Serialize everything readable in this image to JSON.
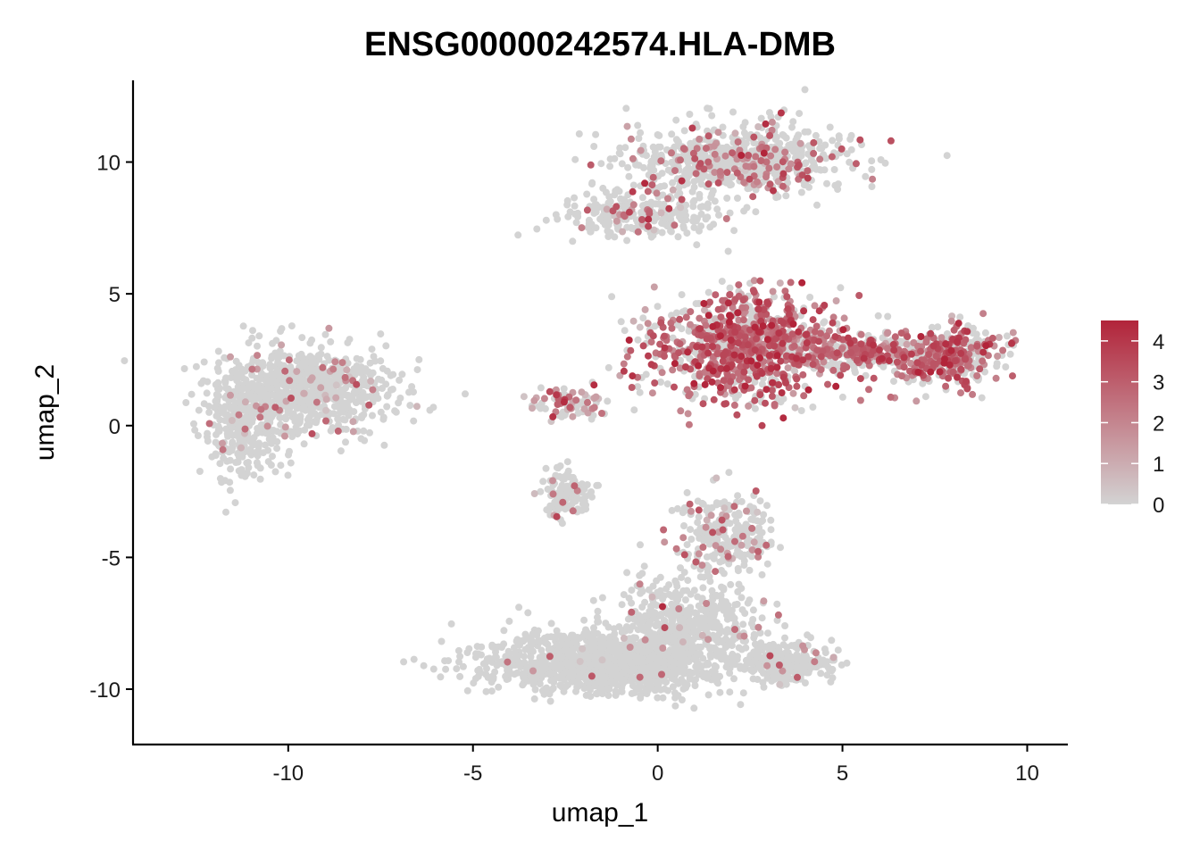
{
  "chart_data": {
    "type": "scatter",
    "title": "ENSG00000242574.HLA-DMB",
    "xlabel": "umap_1",
    "ylabel": "umap_2",
    "xlim": [
      -14.2,
      11.1
    ],
    "ylim": [
      -12.1,
      13.1
    ],
    "x_ticks": [
      -10,
      -5,
      0,
      5,
      10
    ],
    "y_ticks": [
      -10,
      -5,
      0,
      5,
      10
    ],
    "x_tick_labels": [
      "-10",
      "-5",
      "0",
      "5",
      "10"
    ],
    "y_tick_labels": [
      "-10",
      "-5",
      "0",
      "5",
      "10"
    ],
    "grid": false,
    "legend_placement": "right",
    "color_scale": {
      "low_color": "#d3d3d3",
      "high_color": "#b2243a",
      "min": 0,
      "max": 4.5,
      "breaks": [
        0,
        1,
        2,
        3,
        4
      ],
      "break_labels": [
        "0",
        "1",
        "2",
        "3",
        "4"
      ]
    },
    "clusters": [
      {
        "center": [
          -9.4,
          1.3
        ],
        "spread": [
          1.6,
          1.1
        ],
        "n": 700,
        "expression_prob": 0.06,
        "expression_mean": 1.8
      },
      {
        "center": [
          -11.2,
          0.0
        ],
        "spread": [
          0.8,
          1.4
        ],
        "n": 300,
        "expression_prob": 0.04,
        "expression_mean": 1.5
      },
      {
        "center": [
          2.2,
          10.1
        ],
        "spread": [
          2.0,
          0.9
        ],
        "n": 700,
        "expression_prob": 0.18,
        "expression_mean": 2.5
      },
      {
        "center": [
          -0.6,
          8.0
        ],
        "spread": [
          1.4,
          0.6
        ],
        "n": 250,
        "expression_prob": 0.15,
        "expression_mean": 2.2
      },
      {
        "center": [
          2.4,
          3.0
        ],
        "spread": [
          1.7,
          1.3
        ],
        "n": 1000,
        "expression_prob": 0.62,
        "expression_mean": 2.8
      },
      {
        "center": [
          7.8,
          2.6
        ],
        "spread": [
          1.0,
          0.8
        ],
        "n": 400,
        "expression_prob": 0.55,
        "expression_mean": 2.7
      },
      {
        "center": [
          5.4,
          2.8
        ],
        "spread": [
          0.9,
          0.4
        ],
        "n": 180,
        "expression_prob": 0.6,
        "expression_mean": 2.6
      },
      {
        "center": [
          -2.4,
          0.9
        ],
        "spread": [
          0.7,
          0.4
        ],
        "n": 80,
        "expression_prob": 0.45,
        "expression_mean": 2.0
      },
      {
        "center": [
          -2.5,
          -2.6
        ],
        "spread": [
          0.4,
          0.6
        ],
        "n": 120,
        "expression_prob": 0.08,
        "expression_mean": 1.8
      },
      {
        "center": [
          1.8,
          -4.2
        ],
        "spread": [
          0.9,
          1.1
        ],
        "n": 250,
        "expression_prob": 0.18,
        "expression_mean": 2.0
      },
      {
        "center": [
          -1.5,
          -9.0
        ],
        "spread": [
          2.2,
          0.8
        ],
        "n": 1100,
        "expression_prob": 0.01,
        "expression_mean": 1.5
      },
      {
        "center": [
          0.8,
          -7.6
        ],
        "spread": [
          1.4,
          1.2
        ],
        "n": 500,
        "expression_prob": 0.03,
        "expression_mean": 1.8
      },
      {
        "center": [
          3.5,
          -9.0
        ],
        "spread": [
          0.9,
          0.5
        ],
        "n": 250,
        "expression_prob": 0.03,
        "expression_mean": 1.5
      }
    ]
  }
}
